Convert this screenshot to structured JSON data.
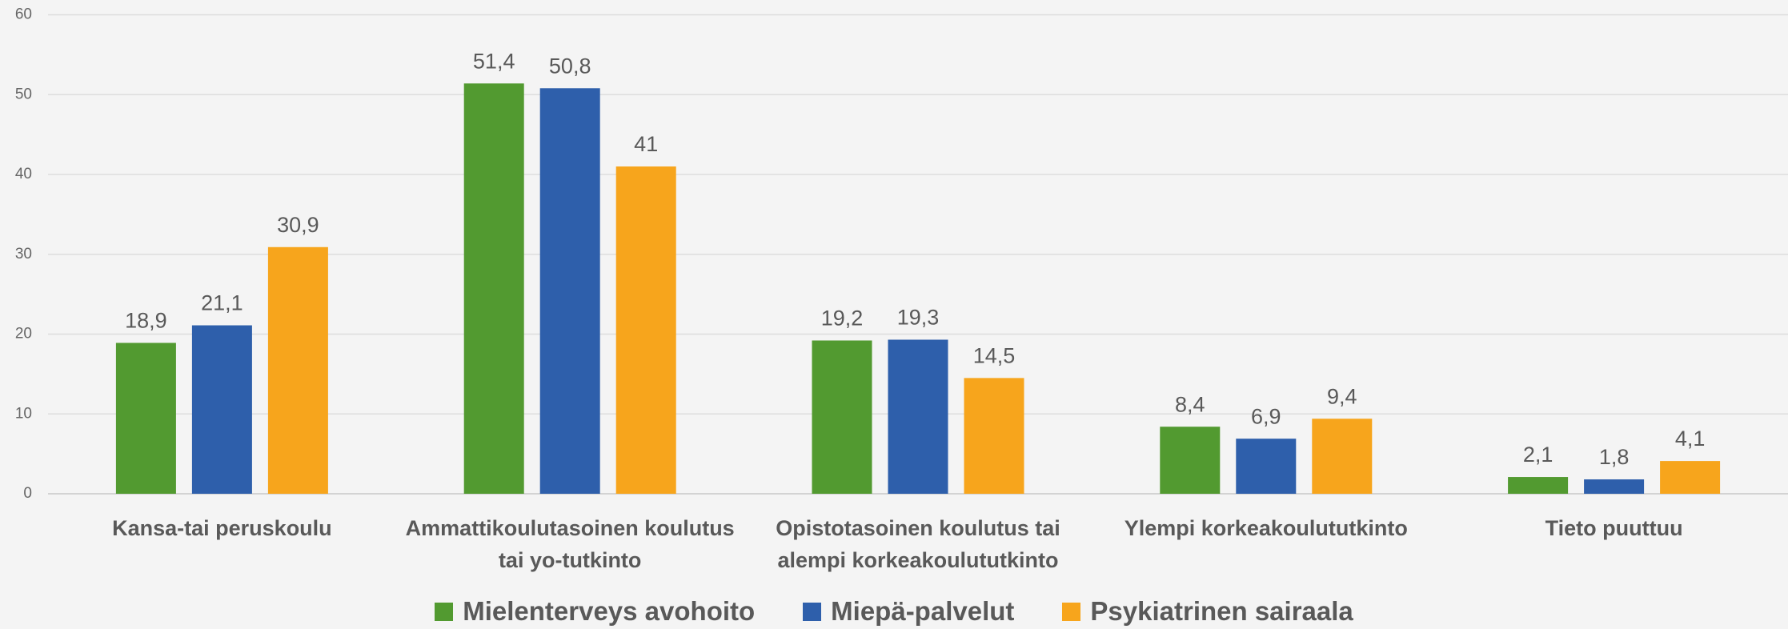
{
  "chart_data": {
    "type": "bar",
    "categories": [
      "Kansa-tai peruskoulu",
      "Ammattikoulutasoinen koulutus tai yo-tutkinto",
      "Opistotasoinen koulutus tai alempi korkeakoulututkinto",
      "Ylempi korkeakoulututkinto",
      "Tieto puuttuu"
    ],
    "series": [
      {
        "name": "Mielenterveys avohoito",
        "color": "#529a30",
        "values": [
          18.9,
          51.4,
          19.2,
          8.4,
          2.1
        ],
        "value_labels": [
          "18,9",
          "51,4",
          "19,2",
          "8,4",
          "2,1"
        ]
      },
      {
        "name": "Miepä-palvelut",
        "color": "#2e5fab",
        "values": [
          21.1,
          50.8,
          19.3,
          6.9,
          1.8
        ],
        "value_labels": [
          "21,1",
          "50,8",
          "19,3",
          "6,9",
          "1,8"
        ]
      },
      {
        "name": "Psykiatrinen sairaala",
        "color": "#f7a51c",
        "values": [
          30.9,
          41,
          14.5,
          9.4,
          4.1
        ],
        "value_labels": [
          "30,9",
          "41",
          "14,5",
          "9,4",
          "4,1"
        ]
      }
    ],
    "ylim": [
      0,
      60
    ],
    "yticks": [
      0,
      10,
      20,
      30,
      40,
      50,
      60
    ],
    "grid": true,
    "legend": "bottom"
  }
}
